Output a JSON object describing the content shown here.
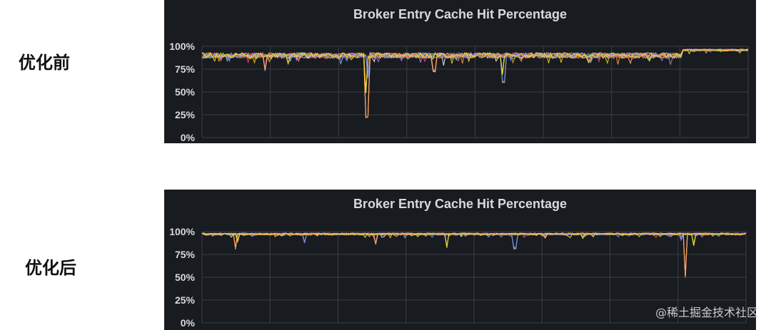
{
  "labels": {
    "before": "优化前",
    "after": "优化后"
  },
  "watermark": "@稀土掘金技术社区",
  "colors": {
    "panel_bg": "#181b1f",
    "grid": "#3a3d42",
    "text": "#d8d9da",
    "series": [
      "#e8e8e8",
      "#f2cc0c",
      "#ff9830",
      "#8ab8ff",
      "#b877d9",
      "#73bf69",
      "#f2495c",
      "#5794f2",
      "#fade2a",
      "#ffb357"
    ]
  },
  "chart_data": [
    {
      "type": "line",
      "title": "Broker Entry Cache Hit Percentage",
      "y_ticks": [
        "0%",
        "25%",
        "50%",
        "75%",
        "100%"
      ],
      "ylim": [
        0,
        100
      ],
      "xlim": [
        0,
        100
      ],
      "grid": true,
      "series_count": 10,
      "baseline": 93,
      "noise": 6,
      "dips": [
        {
          "x": 11.5,
          "y": 72
        },
        {
          "x": 15.8,
          "y": 80
        },
        {
          "x": 25.0,
          "y": 86
        },
        {
          "x": 30.2,
          "y": 20
        },
        {
          "x": 30.0,
          "y": 48
        },
        {
          "x": 30.4,
          "y": 65
        },
        {
          "x": 42.5,
          "y": 72
        },
        {
          "x": 55.0,
          "y": 68
        },
        {
          "x": 55.2,
          "y": 60
        },
        {
          "x": 71.0,
          "y": 82
        },
        {
          "x": 82.0,
          "y": 83
        },
        {
          "x": 86.0,
          "y": 86
        }
      ],
      "late_level": 97,
      "late_from": 88
    },
    {
      "type": "line",
      "title": "Broker Entry Cache Hit Percentage",
      "y_ticks": [
        "0%",
        "25%",
        "50%",
        "75%",
        "100%"
      ],
      "ylim": [
        0,
        100
      ],
      "xlim": [
        0,
        100
      ],
      "grid": true,
      "series_count": 10,
      "baseline": 98.5,
      "noise": 2.2,
      "dips": [
        {
          "x": 6.2,
          "y": 80
        },
        {
          "x": 6.5,
          "y": 88
        },
        {
          "x": 19.0,
          "y": 86
        },
        {
          "x": 32.0,
          "y": 85
        },
        {
          "x": 45.0,
          "y": 82
        },
        {
          "x": 57.5,
          "y": 81
        },
        {
          "x": 63.0,
          "y": 92
        },
        {
          "x": 70.0,
          "y": 91
        },
        {
          "x": 88.0,
          "y": 90
        },
        {
          "x": 88.8,
          "y": 49
        },
        {
          "x": 90.5,
          "y": 84
        }
      ],
      "late_level": 98.5,
      "late_from": 100
    }
  ]
}
